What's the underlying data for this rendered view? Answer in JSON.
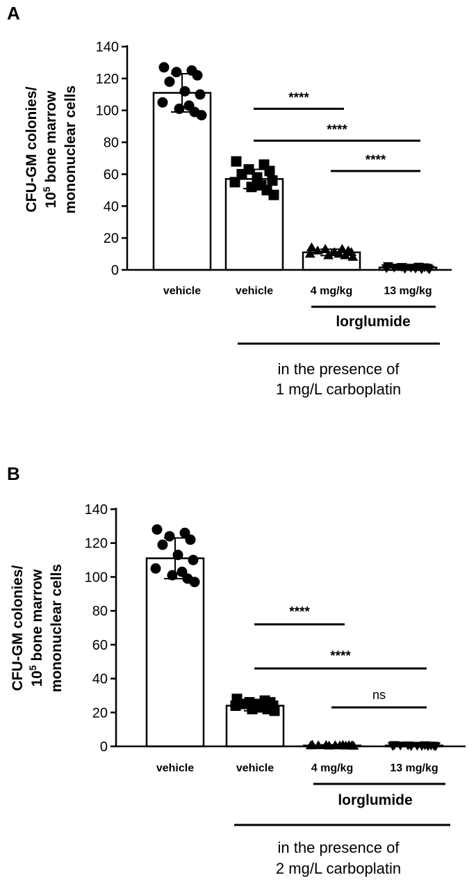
{
  "chart_data": [
    {
      "type": "bar",
      "panel_label": "A",
      "ylabel_lines": [
        "CFU-GM colonies/",
        "10",
        "5",
        " bone marrow",
        "mononuclear cells"
      ],
      "yticks": [
        0,
        20,
        40,
        60,
        80,
        100,
        120,
        140
      ],
      "ylim": [
        0,
        140
      ],
      "categories": [
        "vehicle",
        "vehicle",
        "4 mg/kg",
        "13 mg/kg"
      ],
      "values": [
        111,
        57,
        11,
        1.5
      ],
      "errors": [
        12,
        6,
        2,
        0.8
      ],
      "markers": [
        "circle",
        "square",
        "triangle-up",
        "triangle-down"
      ],
      "points": [
        [
          127,
          125,
          124,
          122,
          118,
          112,
          110,
          105,
          103,
          101,
          99,
          97
        ],
        [
          68,
          66,
          63,
          62,
          60,
          58,
          56,
          55,
          53,
          52,
          50,
          47
        ],
        [
          14,
          13,
          13,
          12,
          12,
          11,
          11,
          10,
          10,
          9,
          9,
          8
        ],
        [
          2.5,
          2.2,
          2,
          1.8,
          1.6,
          1.5,
          1.4,
          1.2,
          1,
          0.8,
          0.6,
          0.5
        ]
      ],
      "comparisons": [
        {
          "from": 1,
          "to": 2,
          "y": 101,
          "label": "****"
        },
        {
          "from": 1,
          "to": 3,
          "y": 81,
          "label": "****"
        },
        {
          "from": 2,
          "to": 3,
          "y": 62,
          "label": "****"
        }
      ],
      "group_label": "lorglumide",
      "condition_line1": "in the presence of",
      "condition_line2": "1 mg/L carboplatin"
    },
    {
      "type": "bar",
      "panel_label": "B",
      "ylabel_lines": [
        "CFU-GM colonies/",
        "10",
        "5",
        " bone marrow",
        "mononuclear cells"
      ],
      "yticks": [
        0,
        20,
        40,
        60,
        80,
        100,
        120,
        140
      ],
      "ylim": [
        0,
        140
      ],
      "categories": [
        "vehicle",
        "vehicle",
        "4 mg/kg",
        "13 mg/kg"
      ],
      "values": [
        111,
        24,
        0.5,
        0.5
      ],
      "errors": [
        12,
        3,
        0.4,
        0.4
      ],
      "markers": [
        "circle",
        "square",
        "triangle-up",
        "triangle-down"
      ],
      "points": [
        [
          128,
          126,
          124,
          122,
          119,
          113,
          110,
          105,
          103,
          101,
          99,
          97
        ],
        [
          28,
          27,
          26,
          26,
          25,
          25,
          24,
          24,
          23,
          22,
          22,
          21
        ],
        [
          0.8,
          0.7,
          0.6,
          0.6,
          0.5,
          0.5,
          0.5,
          0.4,
          0.4,
          0.3,
          0.3,
          0.2
        ],
        [
          0.9,
          0.8,
          0.7,
          0.6,
          0.6,
          0.5,
          0.5,
          0.4,
          0.4,
          0.3,
          0.3,
          0.2
        ]
      ],
      "comparisons": [
        {
          "from": 1,
          "to": 2,
          "y": 72,
          "label": "****"
        },
        {
          "from": 1,
          "to": 3,
          "y": 46,
          "label": "****"
        },
        {
          "from": 2,
          "to": 3,
          "y": 23,
          "label": "ns"
        }
      ],
      "group_label": "lorglumide",
      "condition_line1": "in the presence of",
      "condition_line2": "2 mg/L carboplatin"
    }
  ]
}
